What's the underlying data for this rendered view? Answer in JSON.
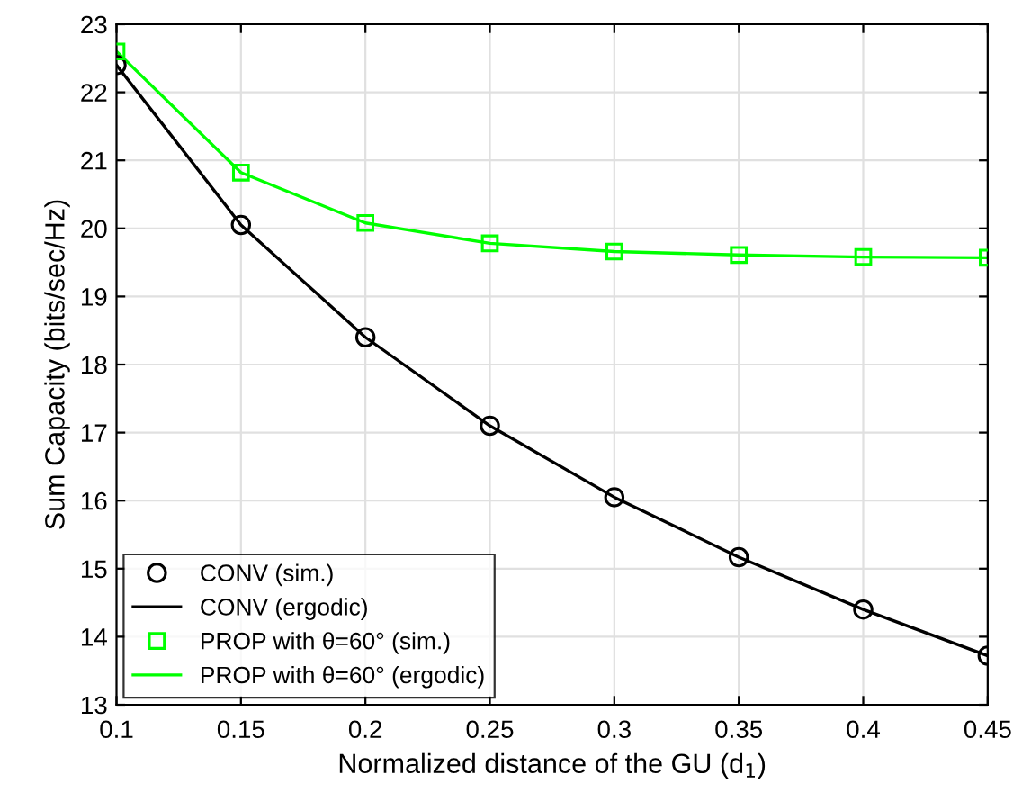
{
  "chart_data": {
    "type": "line",
    "xlabel": "Normalized distance of the GU (d$_{1}$)",
    "ylabel": "Sum Capacity (bits/sec/Hz)",
    "x": [
      0.1,
      0.15,
      0.2,
      0.25,
      0.3,
      0.35,
      0.4,
      0.45
    ],
    "series": [
      {
        "name": "CONV (sim.)",
        "type": "scatter",
        "marker": "circle",
        "color": "#000000",
        "values": [
          22.4,
          20.05,
          18.4,
          17.1,
          16.05,
          15.17,
          14.4,
          13.72
        ]
      },
      {
        "name": "CONV (ergodic)",
        "color": "#000000",
        "values": [
          22.4,
          20.05,
          18.4,
          17.1,
          16.05,
          15.17,
          14.4,
          13.72
        ]
      },
      {
        "name": "PROP with θ=60° (sim.)",
        "type": "scatter",
        "marker": "square",
        "color": "#00ff00",
        "values": [
          22.6,
          20.82,
          20.08,
          19.78,
          19.66,
          19.61,
          19.58,
          19.57
        ]
      },
      {
        "name": "PROP with θ=60° (ergodic)",
        "color": "#00ff00",
        "values": [
          22.6,
          20.82,
          20.08,
          19.78,
          19.66,
          19.61,
          19.58,
          19.57
        ]
      }
    ],
    "xlim": [
      0.1,
      0.45
    ],
    "xticks": [
      0.1,
      0.15,
      0.2,
      0.25,
      0.3,
      0.35,
      0.4,
      0.45
    ],
    "ylim": [
      13,
      23
    ],
    "yticks": [
      13,
      14,
      15,
      16,
      17,
      18,
      19,
      20,
      21,
      22,
      23
    ],
    "grid": true,
    "legend": "bottom left"
  }
}
